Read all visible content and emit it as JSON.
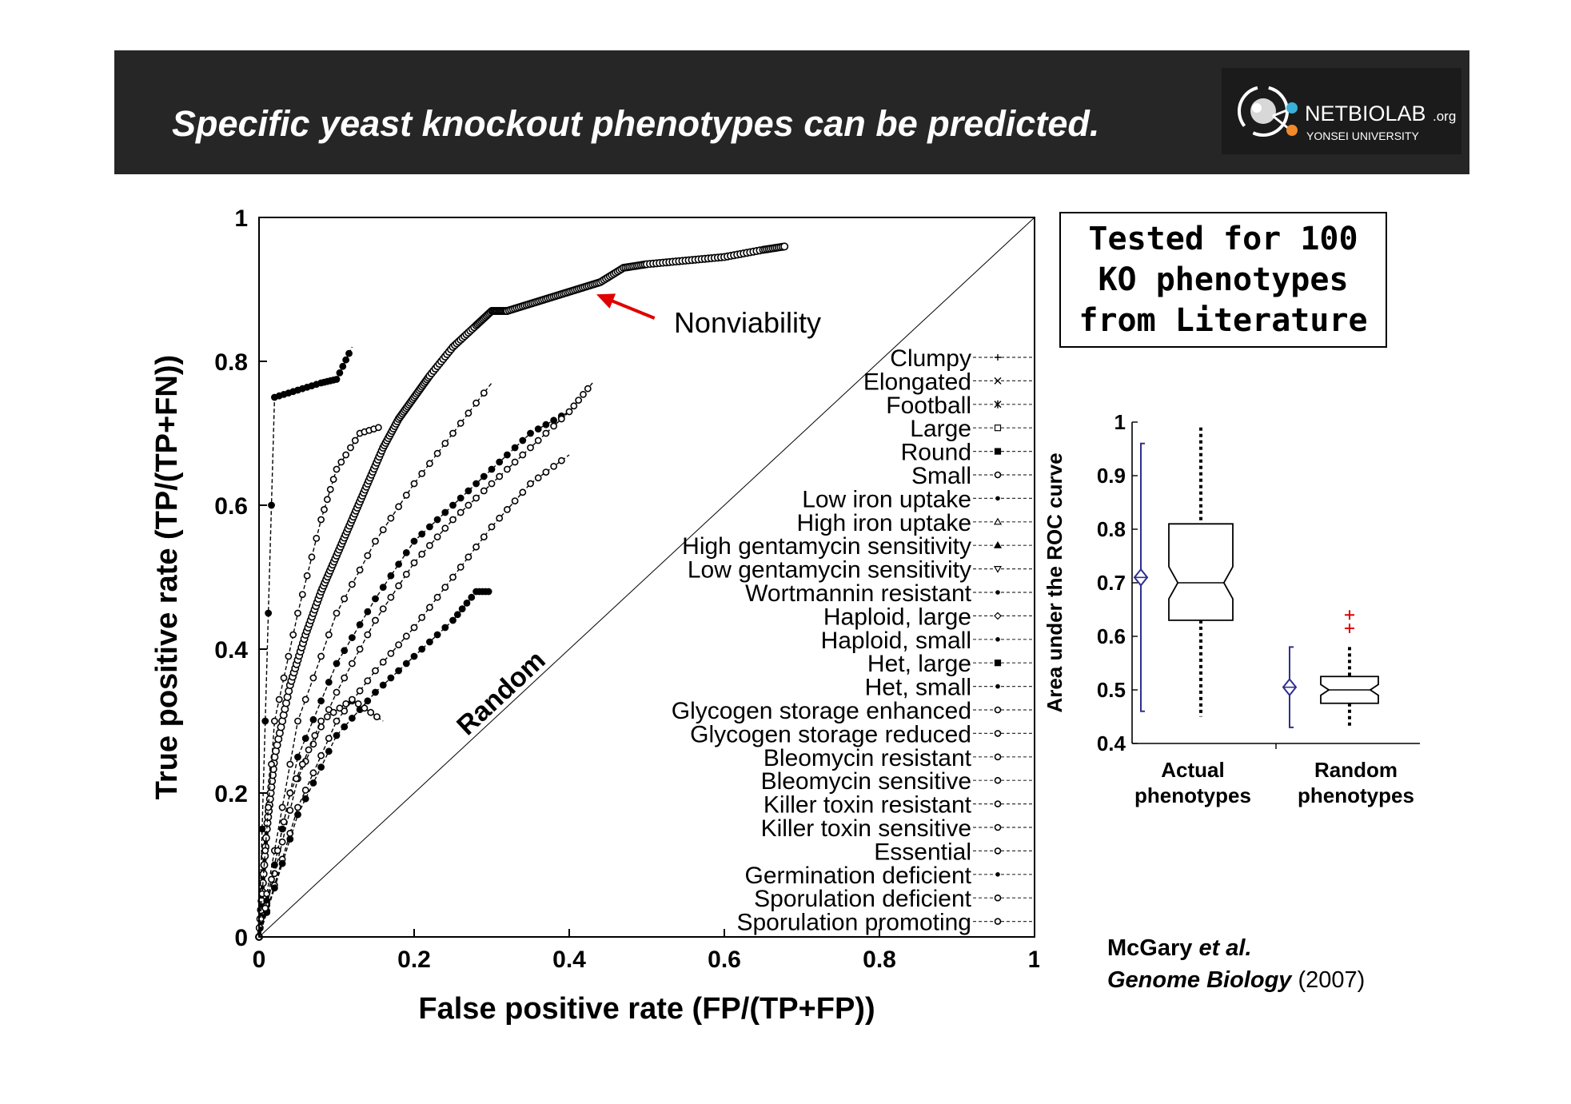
{
  "slide": {
    "title": "Specific yeast knockout phenotypes can be predicted.",
    "logo": {
      "brand": "NETBIOLAB",
      "suffix": ".org",
      "org": "YONSEI UNIVERSITY"
    }
  },
  "callout": {
    "lines": [
      "Tested for 100",
      "KO phenotypes",
      "from Literature"
    ]
  },
  "citation": {
    "authors": "McGary",
    "etal": " et al.",
    "journal": "Genome Biology",
    "year": " (2007)"
  },
  "chart_data": [
    {
      "type": "line",
      "xlabel": "False positive rate (FP/(TP+FP))",
      "ylabel": "True positive rate (TP/(TP+FN))",
      "xlim": [
        0,
        1
      ],
      "ylim": [
        0,
        1
      ],
      "xticks": [
        {
          "v": 0,
          "label": "0"
        },
        {
          "v": 0.2,
          "label": "0.2"
        },
        {
          "v": 0.4,
          "label": "0.4"
        },
        {
          "v": 0.6,
          "label": "0.6"
        },
        {
          "v": 0.8,
          "label": "0.8"
        },
        {
          "v": 1,
          "label": "1"
        }
      ],
      "yticks": [
        {
          "v": 0,
          "label": "0"
        },
        {
          "v": 0.2,
          "label": "0.2"
        },
        {
          "v": 0.4,
          "label": "0.4"
        },
        {
          "v": 0.6,
          "label": "0.6"
        },
        {
          "v": 0.8,
          "label": "0.8"
        },
        {
          "v": 1,
          "label": "1"
        }
      ],
      "grid": false,
      "legend_position": "right",
      "annotations": [
        {
          "text": "Nonviability",
          "color": "#e00000"
        },
        {
          "text": "Random"
        }
      ],
      "diagonal": {
        "name": "Random",
        "x": [
          0,
          1
        ],
        "y": [
          0,
          1
        ]
      },
      "series": [
        {
          "name": "Nonviability",
          "x": [
            0,
            0.01,
            0.02,
            0.04,
            0.06,
            0.08,
            0.1,
            0.12,
            0.14,
            0.16,
            0.18,
            0.2,
            0.22,
            0.25,
            0.28,
            0.3,
            0.32,
            0.35,
            0.38,
            0.41,
            0.44,
            0.47,
            0.5,
            0.55,
            0.6,
            0.65,
            0.68
          ],
          "y": [
            0,
            0.15,
            0.25,
            0.35,
            0.42,
            0.48,
            0.53,
            0.58,
            0.63,
            0.68,
            0.72,
            0.75,
            0.78,
            0.82,
            0.85,
            0.87,
            0.87,
            0.88,
            0.89,
            0.9,
            0.91,
            0.93,
            0.935,
            0.94,
            0.945,
            0.955,
            0.96
          ]
        },
        {
          "name": "Clumpy",
          "x": [
            0,
            0.02,
            0.05,
            0.08,
            0.1,
            0.12
          ],
          "y": [
            0,
            0.75,
            0.76,
            0.77,
            0.775,
            0.82
          ]
        },
        {
          "name": "Elongated",
          "x": [
            0,
            0.02,
            0.05,
            0.08,
            0.1,
            0.13,
            0.16
          ],
          "y": [
            0,
            0.3,
            0.45,
            0.58,
            0.65,
            0.7,
            0.71
          ]
        },
        {
          "name": "Football",
          "x": [
            0,
            0.05,
            0.1,
            0.15,
            0.2,
            0.25,
            0.3
          ],
          "y": [
            0,
            0.3,
            0.45,
            0.55,
            0.63,
            0.7,
            0.77
          ]
        },
        {
          "name": "Large",
          "x": [
            0,
            0.05,
            0.1,
            0.15,
            0.2,
            0.25,
            0.3,
            0.35,
            0.4
          ],
          "y": [
            0,
            0.25,
            0.38,
            0.47,
            0.55,
            0.6,
            0.65,
            0.7,
            0.73
          ]
        },
        {
          "name": "Round",
          "x": [
            0,
            0.05,
            0.1,
            0.15,
            0.2,
            0.25,
            0.3,
            0.35,
            0.4,
            0.43
          ],
          "y": [
            0,
            0.22,
            0.34,
            0.44,
            0.52,
            0.58,
            0.63,
            0.68,
            0.73,
            0.77
          ]
        },
        {
          "name": "Small",
          "x": [
            0,
            0.05,
            0.1,
            0.15,
            0.2,
            0.25,
            0.3,
            0.35,
            0.4
          ],
          "y": [
            0,
            0.18,
            0.3,
            0.37,
            0.43,
            0.5,
            0.57,
            0.63,
            0.67
          ]
        },
        {
          "name": "Low iron uptake",
          "x": [
            0,
            0.05,
            0.1,
            0.15,
            0.2,
            0.25,
            0.28,
            0.3
          ],
          "y": [
            0,
            0.17,
            0.28,
            0.34,
            0.39,
            0.44,
            0.48,
            0.48
          ]
        },
        {
          "name": "Glycogen storage reduced",
          "x": [
            0,
            0.04,
            0.08,
            0.12,
            0.16
          ],
          "y": [
            0,
            0.2,
            0.3,
            0.33,
            0.3
          ]
        }
      ],
      "legend": [
        "Clumpy",
        "Elongated",
        "Football",
        "Large",
        "Round",
        "Small",
        "Low iron uptake",
        "High iron uptake",
        "High gentamycin sensitivity",
        "Low gentamycin sensitivity",
        "Wortmannin resistant",
        "Haploid, large",
        "Haploid, small",
        "Het, large",
        "Het, small",
        "Glycogen storage enhanced",
        "Glycogen storage reduced",
        "Bleomycin resistant",
        "Bleomycin sensitive",
        "Killer toxin resistant",
        "Killer toxin sensitive",
        "Essential",
        "Germination deficient",
        "Sporulation deficient",
        "Sporulation promoting"
      ],
      "legend_markers": [
        "plus",
        "x",
        "star",
        "square",
        "fsquare",
        "circle",
        "dot",
        "triangle",
        "ftriangle",
        "dtriangle",
        "dot",
        "diamond",
        "dot",
        "fsquare",
        "dot",
        "circle",
        "circle",
        "circle",
        "circle",
        "circle",
        "circle",
        "circle",
        "dot",
        "circle",
        "circle"
      ]
    },
    {
      "type": "box",
      "ylabel": "Area under the ROC curve",
      "ylim": [
        0.4,
        1
      ],
      "yticks": [
        {
          "v": 0.4,
          "label": "0.4"
        },
        {
          "v": 0.5,
          "label": "0.5"
        },
        {
          "v": 0.6,
          "label": "0.6"
        },
        {
          "v": 0.7,
          "label": "0.7"
        },
        {
          "v": 0.8,
          "label": "0.8"
        },
        {
          "v": 0.9,
          "label": "0.9"
        },
        {
          "v": 1,
          "label": "1"
        }
      ],
      "categories": [
        {
          "label": [
            "Actual",
            "phenotypes"
          ],
          "q1": 0.63,
          "median": 0.7,
          "q3": 0.81,
          "notch_low": 0.67,
          "notch_high": 0.73,
          "whisker_low": 0.45,
          "whisker_high": 0.99,
          "mean": 0.71,
          "ci_low": 0.46,
          "ci_high": 0.96,
          "outliers": []
        },
        {
          "label": [
            "Random",
            "phenotypes"
          ],
          "q1": 0.475,
          "median": 0.5,
          "q3": 0.525,
          "notch_low": 0.49,
          "notch_high": 0.51,
          "whisker_low": 0.43,
          "whisker_high": 0.58,
          "mean": 0.505,
          "ci_low": 0.43,
          "ci_high": 0.58,
          "outliers": [
            0.615,
            0.64
          ]
        }
      ],
      "colors": {
        "box": "#000000",
        "mean_marker": "#2f2f8f",
        "outlier": "#e00000"
      }
    }
  ]
}
